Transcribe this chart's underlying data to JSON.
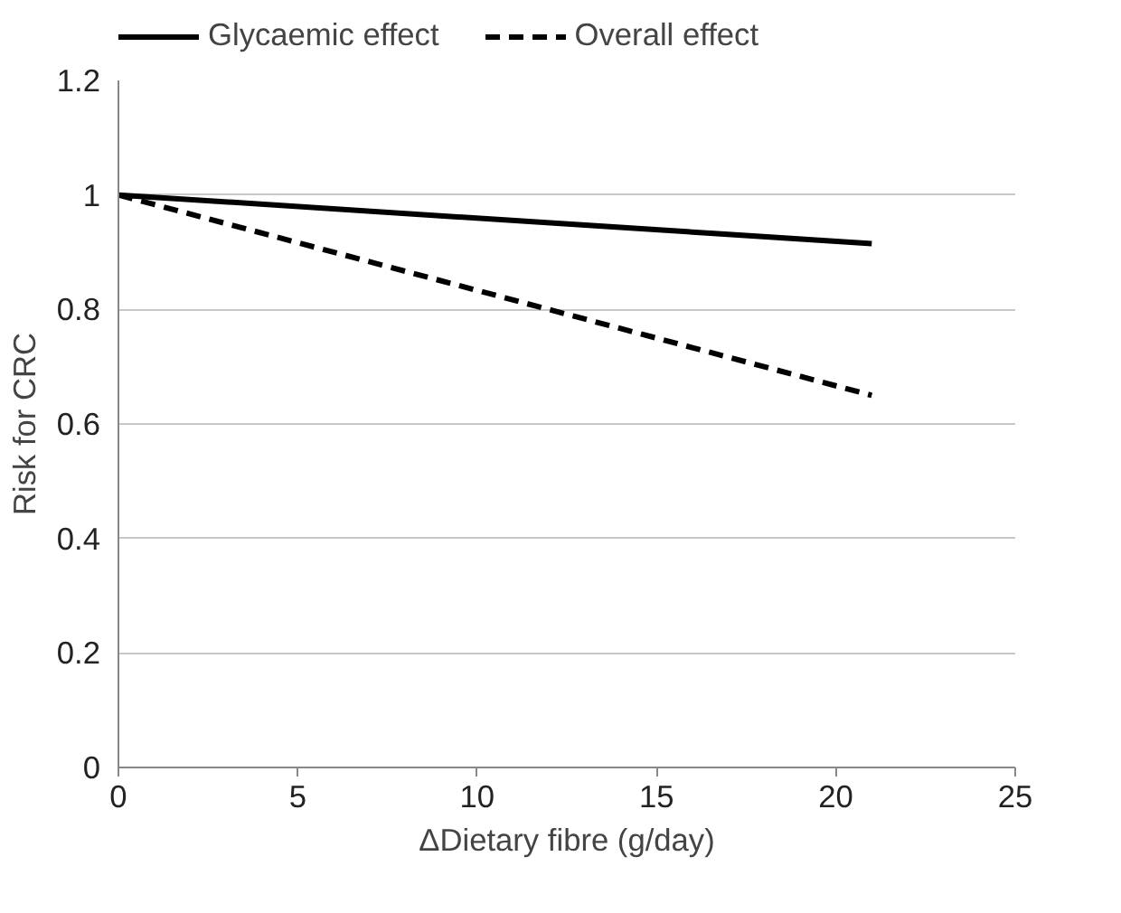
{
  "chart_data": {
    "type": "line",
    "xlabel": "ΔDietary fibre (g/day)",
    "ylabel": "Risk for CRC",
    "x": [
      0,
      21
    ],
    "series": [
      {
        "name": "Glycaemic effect",
        "color": "#000000",
        "values": [
          1,
          0.915
        ],
        "line_style": "solid"
      },
      {
        "name": "Overall effect",
        "color": "#000000",
        "values": [
          1,
          0.65
        ],
        "line_style": "dashed"
      }
    ],
    "xlim": [
      0,
      25
    ],
    "xticks": [
      0,
      5,
      10,
      15,
      20,
      25
    ],
    "ylim": [
      0,
      1.2
    ],
    "yticks": [
      0,
      0.2,
      0.4,
      0.6,
      0.8,
      1,
      1.2
    ],
    "grid": "y",
    "legend": "top",
    "marker": "none"
  }
}
